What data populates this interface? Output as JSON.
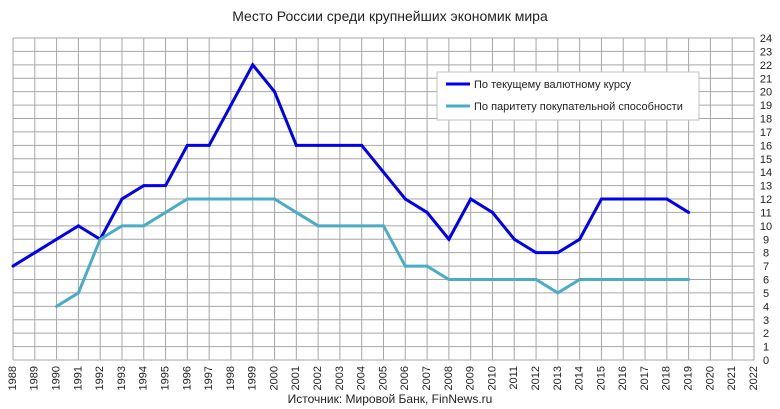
{
  "chart_data": {
    "type": "line",
    "title": "Место России среди крупнейших экономик мира",
    "source": "Источник: Мировой Банк, FinNews.ru",
    "x_categories": [
      "1988",
      "1989",
      "1990",
      "1991",
      "1992",
      "1993",
      "1994",
      "1995",
      "1996",
      "1997",
      "1998",
      "1999",
      "2000",
      "2001",
      "2002",
      "2003",
      "2004",
      "2005",
      "2006",
      "2007",
      "2008",
      "2009",
      "2010",
      "2011",
      "2012",
      "2013",
      "2014",
      "2015",
      "2016",
      "2017",
      "2018",
      "2019",
      "2020",
      "2021",
      "2022"
    ],
    "ylim": [
      0,
      24
    ],
    "y_ticks": [
      "0",
      "1",
      "2",
      "3",
      "4",
      "5",
      "6",
      "7",
      "8",
      "9",
      "10",
      "11",
      "12",
      "13",
      "14",
      "15",
      "16",
      "17",
      "18",
      "19",
      "20",
      "21",
      "22",
      "23",
      "24"
    ],
    "y_axis_side": "right",
    "grid": true,
    "legend_position": "top-right",
    "series": [
      {
        "name": "По текущему валютному курсу",
        "color": "#0000ee",
        "x": [
          "1988",
          "1989",
          "1990",
          "1991",
          "1992",
          "1993",
          "1994",
          "1995",
          "1996",
          "1997",
          "1998",
          "1999",
          "2000",
          "2001",
          "2002",
          "2003",
          "2004",
          "2005",
          "2006",
          "2007",
          "2008",
          "2009",
          "2010",
          "2011",
          "2012",
          "2013",
          "2014",
          "2015",
          "2016",
          "2017",
          "2018",
          "2019"
        ],
        "values": [
          7,
          8,
          9,
          10,
          9,
          12,
          13,
          13,
          16,
          16,
          19,
          22,
          20,
          16,
          16,
          16,
          16,
          14,
          12,
          11,
          9,
          12,
          11,
          9,
          8,
          8,
          9,
          12,
          12,
          12,
          12,
          11
        ]
      },
      {
        "name": "По паритету покупательной способности",
        "color": "#4bacc6",
        "x": [
          "1990",
          "1991",
          "1992",
          "1993",
          "1994",
          "1995",
          "1996",
          "1997",
          "1998",
          "1999",
          "2000",
          "2001",
          "2002",
          "2003",
          "2004",
          "2005",
          "2006",
          "2007",
          "2008",
          "2009",
          "2010",
          "2011",
          "2012",
          "2013",
          "2014",
          "2015",
          "2016",
          "2017",
          "2018",
          "2019"
        ],
        "values": [
          4,
          5,
          9,
          10,
          10,
          11,
          12,
          12,
          12,
          12,
          12,
          11,
          10,
          10,
          10,
          10,
          7,
          7,
          6,
          6,
          6,
          6,
          6,
          5,
          6,
          6,
          6,
          6,
          6,
          6
        ]
      }
    ]
  }
}
